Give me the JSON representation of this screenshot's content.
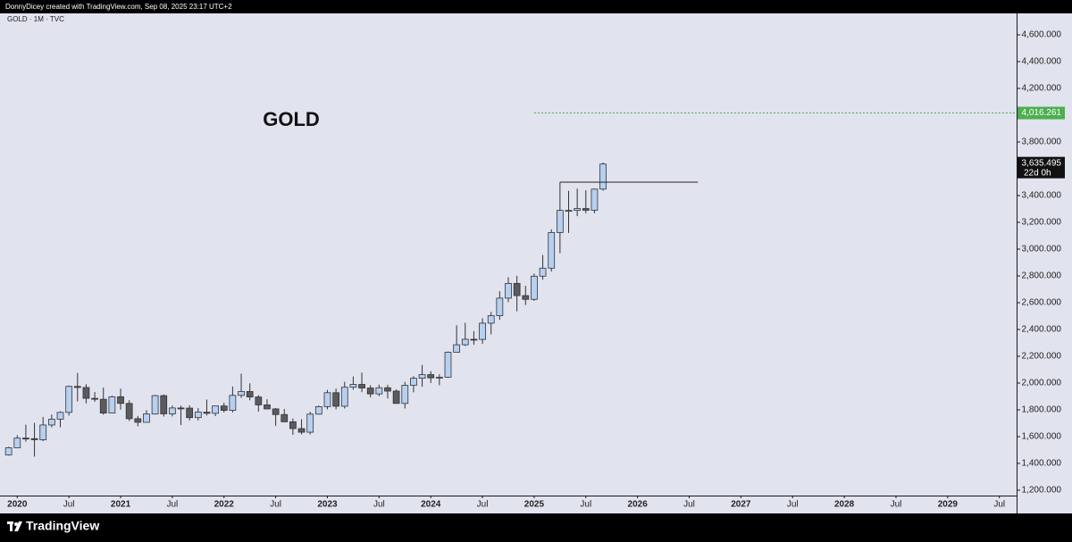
{
  "header": "DonnyDicey created with TradingView.com, Sep 08, 2025 23:17 UTC+2",
  "brand": "TradingView",
  "chart_data": {
    "type": "candlestick",
    "title": "GOLD",
    "subtitle": "GOLD · 1M · TVC",
    "x": [
      "2019-12",
      "2020-01",
      "2020-02",
      "2020-03",
      "2020-04",
      "2020-05",
      "2020-06",
      "2020-07",
      "2020-08",
      "2020-09",
      "2020-10",
      "2020-11",
      "2020-12",
      "2021-01",
      "2021-02",
      "2021-03",
      "2021-04",
      "2021-05",
      "2021-06",
      "2021-07",
      "2021-08",
      "2021-09",
      "2021-10",
      "2021-11",
      "2021-12",
      "2022-01",
      "2022-02",
      "2022-03",
      "2022-04",
      "2022-05",
      "2022-06",
      "2022-07",
      "2022-08",
      "2022-09",
      "2022-10",
      "2022-11",
      "2022-12",
      "2023-01",
      "2023-02",
      "2023-03",
      "2023-04",
      "2023-05",
      "2023-06",
      "2023-07",
      "2023-08",
      "2023-09",
      "2023-10",
      "2023-11",
      "2023-12",
      "2024-01",
      "2024-02",
      "2024-03",
      "2024-04",
      "2024-05",
      "2024-06",
      "2024-07",
      "2024-08",
      "2024-09",
      "2024-10",
      "2024-11",
      "2024-12",
      "2025-01",
      "2025-02",
      "2025-03",
      "2025-04",
      "2025-05",
      "2025-06",
      "2025-07",
      "2025-08",
      "2025-09"
    ],
    "open": [
      1464,
      1517,
      1589,
      1585,
      1577,
      1687,
      1730,
      1781,
      1975,
      1967,
      1886,
      1879,
      1776,
      1898,
      1848,
      1734,
      1707,
      1769,
      1906,
      1770,
      1814,
      1813,
      1742,
      1783,
      1774,
      1829,
      1796,
      1908,
      1937,
      1896,
      1837,
      1807,
      1765,
      1711,
      1660,
      1633,
      1768,
      1824,
      1928,
      1827,
      1969,
      1990,
      1963,
      1919,
      1965,
      1940,
      1848,
      1983,
      2036,
      2063,
      2039,
      2044,
      2230,
      2286,
      2327,
      2326,
      2447,
      2503,
      2634,
      2744,
      2653,
      2625,
      2798,
      2858,
      3124,
      3289,
      3289,
      3303,
      3290,
      3448
    ],
    "high": [
      1524,
      1611,
      1689,
      1703,
      1747,
      1765,
      1789,
      1981,
      2075,
      1992,
      1933,
      1966,
      1906,
      1959,
      1872,
      1755,
      1797,
      1912,
      1916,
      1832,
      1831,
      1834,
      1813,
      1877,
      1830,
      1853,
      1974,
      2070,
      1998,
      1910,
      1879,
      1814,
      1807,
      1735,
      1730,
      1786,
      1833,
      1949,
      1959,
      2009,
      2049,
      2079,
      1984,
      1988,
      1987,
      1953,
      2009,
      2052,
      2135,
      2088,
      2065,
      2236,
      2432,
      2450,
      2388,
      2484,
      2531,
      2686,
      2790,
      2801,
      2726,
      2817,
      2956,
      3148,
      3500,
      3435,
      3452,
      3439,
      3453,
      3646
    ],
    "low": [
      1459,
      1517,
      1562,
      1451,
      1567,
      1670,
      1670,
      1757,
      1863,
      1848,
      1860,
      1764,
      1776,
      1802,
      1717,
      1677,
      1705,
      1765,
      1750,
      1751,
      1687,
      1721,
      1721,
      1758,
      1753,
      1780,
      1780,
      1890,
      1872,
      1787,
      1805,
      1681,
      1709,
      1614,
      1617,
      1617,
      1765,
      1804,
      1804,
      1810,
      1950,
      1932,
      1893,
      1903,
      1885,
      1846,
      1810,
      1931,
      1973,
      2001,
      1984,
      2039,
      2229,
      2277,
      2286,
      2293,
      2364,
      2472,
      2604,
      2536,
      2583,
      2614,
      2772,
      2833,
      2970,
      3121,
      3246,
      3268,
      3268,
      3436
    ],
    "close": [
      1517,
      1589,
      1585,
      1577,
      1687,
      1730,
      1781,
      1975,
      1967,
      1886,
      1879,
      1776,
      1898,
      1848,
      1734,
      1707,
      1769,
      1906,
      1770,
      1814,
      1813,
      1742,
      1783,
      1774,
      1829,
      1796,
      1908,
      1937,
      1896,
      1837,
      1807,
      1765,
      1711,
      1660,
      1633,
      1768,
      1824,
      1928,
      1827,
      1969,
      1990,
      1963,
      1919,
      1965,
      1940,
      1848,
      1983,
      2036,
      2063,
      2039,
      2044,
      2230,
      2286,
      2327,
      2326,
      2447,
      2503,
      2634,
      2744,
      2653,
      2625,
      2798,
      2858,
      3124,
      3289,
      3289,
      3303,
      3290,
      3448,
      3635.495
    ],
    "up_color": "#b6d0f2",
    "down_color": "#5b5b5f",
    "ylim": [
      1160,
      4760
    ],
    "yticks": [
      {
        "value": 1200,
        "label": "1,200.000"
      },
      {
        "value": 1400,
        "label": "1,400.000"
      },
      {
        "value": 1600,
        "label": "1,600.000"
      },
      {
        "value": 1800,
        "label": "1,800.000"
      },
      {
        "value": 2000,
        "label": "2,000.000"
      },
      {
        "value": 2200,
        "label": "2,200.000"
      },
      {
        "value": 2400,
        "label": "2,400.000"
      },
      {
        "value": 2600,
        "label": "2,600.000"
      },
      {
        "value": 2800,
        "label": "2,800.000"
      },
      {
        "value": 3000,
        "label": "3,000.000"
      },
      {
        "value": 3200,
        "label": "3,200.000"
      },
      {
        "value": 3400,
        "label": "3,400.000"
      },
      {
        "value": 3800,
        "label": "3,800.000"
      },
      {
        "value": 4200,
        "label": "4,200.000"
      },
      {
        "value": 4400,
        "label": "4,400.000"
      },
      {
        "value": 4600,
        "label": "4,600.000"
      }
    ],
    "xlim": [
      "2019-11",
      "2029-09"
    ],
    "xticks": [
      {
        "value": "2020-01",
        "label": "2020"
      },
      {
        "value": "2020-07",
        "label": "Jul"
      },
      {
        "value": "2021-01",
        "label": "2021"
      },
      {
        "value": "2021-07",
        "label": "Jul"
      },
      {
        "value": "2022-01",
        "label": "2022"
      },
      {
        "value": "2022-07",
        "label": "Jul"
      },
      {
        "value": "2023-01",
        "label": "2023"
      },
      {
        "value": "2023-07",
        "label": "Jul"
      },
      {
        "value": "2024-01",
        "label": "2024"
      },
      {
        "value": "2024-07",
        "label": "Jul"
      },
      {
        "value": "2025-01",
        "label": "2025"
      },
      {
        "value": "2025-07",
        "label": "Jul"
      },
      {
        "value": "2026-01",
        "label": "2026"
      },
      {
        "value": "2026-07",
        "label": "Jul"
      },
      {
        "value": "2027-01",
        "label": "2027"
      },
      {
        "value": "2027-07",
        "label": "Jul"
      },
      {
        "value": "2028-01",
        "label": "2028"
      },
      {
        "value": "2028-07",
        "label": "Jul"
      },
      {
        "value": "2029-01",
        "label": "2029"
      },
      {
        "value": "2029-07",
        "label": "Jul"
      }
    ],
    "last_price": {
      "value": 3635.495,
      "label": "3,635.495",
      "countdown": "22d 0h"
    },
    "alert_line": {
      "value": 4016.261,
      "label": "4,016.261",
      "start": "2025-01",
      "color": "#4caf50"
    },
    "level_line": {
      "value": 3500,
      "start": "2025-04",
      "end": "2026-08"
    }
  }
}
